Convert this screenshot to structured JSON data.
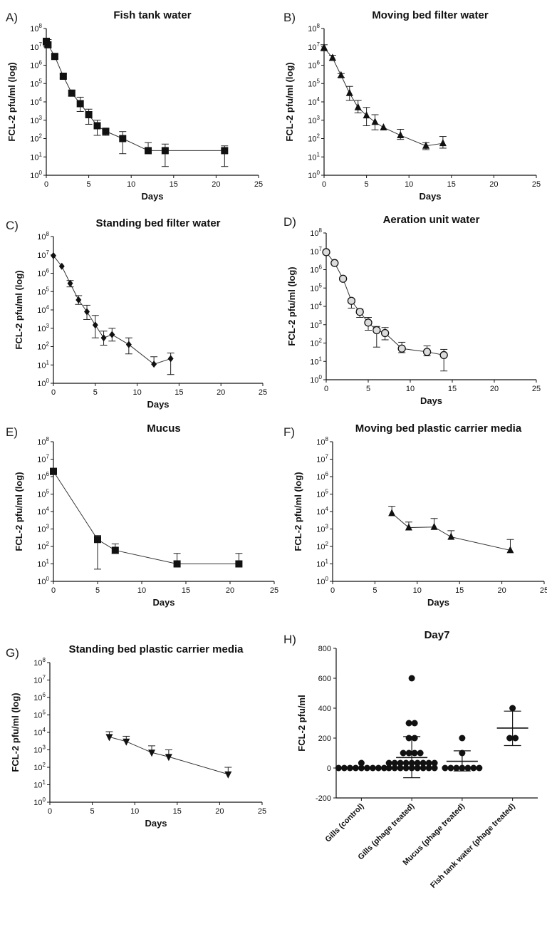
{
  "figure": {
    "panels": [
      "A)",
      "B)",
      "C)",
      "D)",
      "E)",
      "F)",
      "G)",
      "H)"
    ]
  },
  "chart_data": [
    {
      "panel": "A)",
      "type": "line",
      "title": "Fish tank water",
      "xlabel": "Days",
      "ylabel": "FCL-2 pfu/ml (log)",
      "xlim": [
        0,
        25
      ],
      "xticks": [
        0,
        5,
        10,
        15,
        20,
        25
      ],
      "ylim": [
        1,
        100000000
      ],
      "yscale": "log",
      "marker": "square",
      "x": [
        0,
        0.2,
        1,
        2,
        3,
        4,
        5,
        6,
        7,
        9,
        12,
        14,
        21
      ],
      "y": [
        20000000,
        13000000,
        3000000,
        250000,
        30000,
        8000,
        2000,
        500,
        250,
        100,
        22,
        22,
        22
      ],
      "err_hi": [
        30000000,
        25000000,
        3800000,
        330000,
        40000,
        18000,
        4000,
        1000,
        350,
        240,
        60,
        50,
        40
      ],
      "err_lo": [
        12000000,
        9000000,
        2400000,
        200000,
        22000,
        3000,
        600,
        150,
        150,
        15,
        null,
        3,
        3
      ],
      "grid": false
    },
    {
      "panel": "B)",
      "type": "line",
      "title": "Moving bed filter water",
      "xlabel": "Days",
      "ylabel": "FCL-2 pfu/ml (log)",
      "xlim": [
        0,
        25
      ],
      "xticks": [
        0,
        5,
        10,
        15,
        20,
        25
      ],
      "ylim": [
        1,
        100000000
      ],
      "yscale": "log",
      "marker": "triangle-up",
      "x": [
        0,
        1,
        2,
        3,
        4,
        5,
        6,
        7,
        9,
        12,
        14
      ],
      "y": [
        9000000,
        2500000,
        280000,
        30000,
        5000,
        1800,
        800,
        400,
        150,
        40,
        55
      ],
      "err_hi": [
        13000000,
        3500000,
        350000,
        70000,
        12000,
        5000,
        2000,
        null,
        320,
        60,
        130
      ],
      "err_lo": [
        6000000,
        1800000,
        220000,
        12000,
        2500,
        500,
        300,
        null,
        90,
        25,
        30
      ],
      "grid": false
    },
    {
      "panel": "C)",
      "type": "line",
      "title": "Standing bed filter water",
      "xlabel": "Days",
      "ylabel": "FCL-2 pfu/ml (log)",
      "xlim": [
        0,
        25
      ],
      "xticks": [
        0,
        5,
        10,
        15,
        20,
        25
      ],
      "ylim": [
        1,
        100000000
      ],
      "yscale": "log",
      "marker": "diamond",
      "x": [
        0,
        1,
        2,
        3,
        4,
        5,
        6,
        7,
        9,
        12,
        14
      ],
      "y": [
        9000000,
        2400000,
        280000,
        35000,
        8000,
        1500,
        300,
        450,
        130,
        11,
        22
      ],
      "err_hi": [
        null,
        null,
        400000,
        60000,
        18000,
        5000,
        700,
        1000,
        300,
        28,
        45
      ],
      "err_lo": [
        null,
        null,
        180000,
        20000,
        3000,
        300,
        120,
        200,
        40,
        null,
        3
      ],
      "grid": false
    },
    {
      "panel": "D)",
      "type": "line",
      "title": "Aeration unit water",
      "xlabel": "Days",
      "ylabel": "FCL-2 pfu/ml (log)",
      "xlim": [
        0,
        25
      ],
      "xticks": [
        0,
        5,
        10,
        15,
        20,
        25
      ],
      "ylim": [
        1,
        100000000
      ],
      "yscale": "log",
      "marker": "circle-open",
      "x": [
        0,
        1,
        2,
        3,
        4,
        5,
        6,
        7,
        9,
        12,
        14
      ],
      "y": [
        9000000,
        2300000,
        320000,
        20000,
        5000,
        1300,
        500,
        350,
        50,
        33,
        22
      ],
      "err_hi": [
        null,
        null,
        null,
        null,
        7000,
        2500,
        800,
        700,
        110,
        70,
        45
      ],
      "err_lo": [
        null,
        null,
        null,
        8000,
        2500,
        500,
        60,
        150,
        30,
        20,
        3
      ],
      "grid": false
    },
    {
      "panel": "E)",
      "type": "line",
      "title": "Mucus",
      "xlabel": "Days",
      "ylabel": "FCL-2 pfu/ml (log)",
      "xlim": [
        0,
        25
      ],
      "xticks": [
        0,
        5,
        10,
        15,
        20,
        25
      ],
      "ylim": [
        1,
        100000000
      ],
      "yscale": "log",
      "marker": "square",
      "x": [
        0,
        5,
        7,
        14,
        21
      ],
      "y": [
        2000000,
        250,
        60,
        10,
        10
      ],
      "err_hi": [
        3000000,
        420,
        140,
        40,
        40
      ],
      "err_lo": [
        1300000,
        5,
        40,
        null,
        null
      ],
      "grid": false
    },
    {
      "panel": "F)",
      "type": "line",
      "title": "Moving bed plastic carrier media",
      "xlabel": "Days",
      "ylabel": "FCL-2 pfu/ml (log)",
      "xlim": [
        0,
        25
      ],
      "xticks": [
        0,
        5,
        10,
        15,
        20,
        25
      ],
      "ylim": [
        1,
        100000000
      ],
      "yscale": "log",
      "marker": "triangle-up",
      "x": [
        7,
        9,
        12,
        14,
        21
      ],
      "y": [
        8000,
        1200,
        1300,
        350,
        60
      ],
      "err_hi": [
        20000,
        2500,
        4000,
        800,
        250
      ],
      "err_lo": [
        null,
        null,
        null,
        null,
        null
      ],
      "grid": false
    },
    {
      "panel": "G)",
      "type": "line",
      "title": "Standing bed plastic carrier media",
      "xlabel": "Days",
      "ylabel": "FCL-2 pfu/ml (log)",
      "xlim": [
        0,
        25
      ],
      "xticks": [
        0,
        5,
        10,
        15,
        20,
        25
      ],
      "ylim": [
        1,
        100000000
      ],
      "yscale": "log",
      "marker": "triangle-down",
      "x": [
        7,
        9,
        12,
        14,
        21
      ],
      "y": [
        5500,
        3000,
        700,
        400,
        40
      ],
      "err_hi": [
        11000,
        6000,
        1700,
        1000,
        100
      ],
      "err_lo": [
        null,
        null,
        null,
        null,
        null
      ],
      "grid": false
    },
    {
      "panel": "H)",
      "type": "scatter",
      "title": "Day7",
      "xlabel": "",
      "ylabel": "FCL-2 pfu/ml",
      "ylim": [
        -200,
        800
      ],
      "yticks": [
        -200,
        0,
        200,
        400,
        600,
        800
      ],
      "categories": [
        "Gills (control)",
        "Gills (phage treated)",
        "Mucus (phage treated)",
        "Fish tank water (phage treated)"
      ],
      "points": [
        [
          0,
          0,
          0,
          0,
          0,
          0,
          0,
          0,
          0,
          0
        ],
        [
          600,
          300,
          300,
          200,
          200,
          100,
          100,
          100,
          100,
          0,
          0,
          0,
          0,
          0,
          0,
          0,
          0,
          0,
          0,
          0,
          0,
          0,
          0,
          0,
          0,
          0,
          0
        ],
        [
          200,
          100,
          0,
          0,
          0,
          0,
          0,
          0,
          0
        ],
        [
          400,
          200,
          200
        ]
      ],
      "mean": [
        0,
        70,
        45,
        267
      ],
      "sd_hi": [
        0,
        210,
        115,
        380
      ],
      "sd_lo": [
        0,
        -65,
        -20,
        150
      ],
      "grid": false
    }
  ]
}
